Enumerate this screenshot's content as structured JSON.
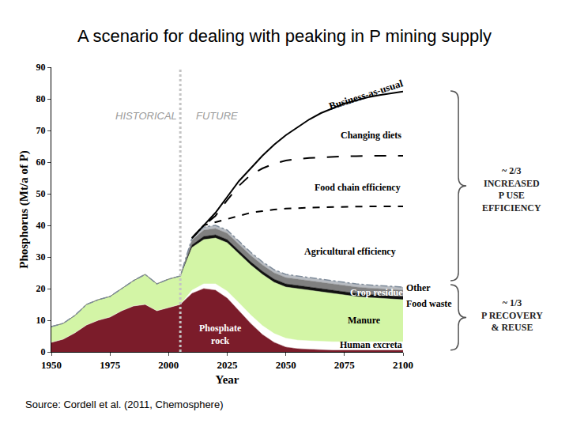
{
  "chart_data": {
    "type": "area",
    "title": "A scenario for dealing with peaking in P mining supply",
    "source": "Source: Cordell et al. (2011, Chemosphere)",
    "xlabel": "Year",
    "ylabel": "Phosphorus (Mt/a of P)",
    "stacked": true,
    "grid": false,
    "xlim": [
      1950,
      2100
    ],
    "xticks": [
      1950,
      1975,
      2000,
      2025,
      2050,
      2075,
      2100
    ],
    "ylim": [
      0,
      90
    ],
    "yticks": [
      0,
      10,
      20,
      30,
      40,
      50,
      60,
      70,
      80,
      90
    ],
    "divider_x": 2005,
    "period_labels": [
      "HISTORICAL",
      "FUTURE"
    ],
    "annotations": [
      "Changing diets",
      "Food chain efficiency",
      "Agricultural efficiency"
    ],
    "brackets": [
      {
        "lines": [
          "~ 2/3",
          "INCREASED",
          "P USE",
          "EFFICIENCY"
        ]
      },
      {
        "lines": [
          "~ 1/3",
          "P RECOVERY",
          "& REUSE"
        ]
      }
    ],
    "x": [
      1950,
      1955,
      1960,
      1965,
      1970,
      1975,
      1980,
      1985,
      1990,
      1995,
      2000,
      2005,
      2010,
      2015,
      2020,
      2025,
      2030,
      2035,
      2040,
      2045,
      2050,
      2055,
      2060,
      2065,
      2070,
      2075,
      2080,
      2085,
      2090,
      2095,
      2100
    ],
    "series": [
      {
        "name": "Phosphate rock",
        "type": "area",
        "color": "#7b1c2a",
        "values": [
          3,
          4,
          6,
          8.5,
          10,
          11,
          13,
          14.5,
          15,
          13,
          14,
          15,
          18.5,
          20,
          19.5,
          17,
          13,
          9,
          5.5,
          3,
          1.5,
          1,
          0.8,
          0.6,
          0.5,
          0.5,
          0.5,
          0.5,
          0.5,
          0.5,
          0.5
        ]
      },
      {
        "name": "Human excreta",
        "type": "area",
        "color": "#ffffff",
        "values": [
          0,
          0,
          0,
          0,
          0,
          0,
          0,
          0,
          0,
          0,
          0,
          0,
          1,
          1.5,
          2,
          2.2,
          2.5,
          2.7,
          2.8,
          2.8,
          2.8,
          2.7,
          2.7,
          2.7,
          2.7,
          2.7,
          2.7,
          2.7,
          2.7,
          2.7,
          2.7
        ]
      },
      {
        "name": "Manure",
        "type": "area",
        "color": "#d3f5a6",
        "values": [
          5,
          5,
          5.5,
          6.5,
          6.5,
          6.5,
          7,
          8,
          9.5,
          8.5,
          9,
          9,
          13.5,
          14,
          14.5,
          15.3,
          15.5,
          15.8,
          16.2,
          16.2,
          16.2,
          16.3,
          16,
          15.7,
          15.3,
          14.8,
          14.3,
          14,
          13.8,
          13.5,
          13.3
        ]
      },
      {
        "name": "Food waste",
        "type": "area",
        "color": "#111111",
        "values": [
          0,
          0,
          0,
          0,
          0,
          0,
          0,
          0,
          0,
          0,
          0,
          0,
          0.8,
          1,
          1,
          1,
          1,
          1,
          1,
          1,
          1,
          1,
          1,
          1,
          1,
          1,
          1,
          1,
          1,
          1,
          1
        ]
      },
      {
        "name": "Crop residues",
        "type": "area",
        "color": "#808080",
        "values": [
          0,
          0,
          0,
          0,
          0,
          0,
          0,
          0,
          0,
          0,
          0,
          0,
          1.5,
          2,
          2,
          2,
          2,
          2,
          2,
          2,
          2,
          2,
          2,
          2,
          2,
          2,
          2,
          2,
          2,
          2,
          2
        ]
      },
      {
        "name": "Other",
        "type": "area",
        "color": "#b8bcc2",
        "line_style": "dashdot",
        "values": [
          0,
          0,
          0,
          0,
          0,
          0,
          0,
          0,
          0,
          0,
          0,
          0,
          0.7,
          1,
          1,
          1,
          1,
          1,
          1,
          1,
          1,
          1,
          1,
          1,
          1,
          1,
          1,
          1,
          1,
          1,
          1
        ]
      },
      {
        "name": "Business-as-usual",
        "type": "line",
        "color": "#000000",
        "line_style": "solid",
        "values": [
          null,
          null,
          null,
          null,
          null,
          null,
          null,
          null,
          null,
          null,
          null,
          null,
          36,
          40,
          44,
          49,
          54,
          58,
          62,
          65.5,
          68.5,
          71,
          73.5,
          75.5,
          77,
          78.5,
          79.5,
          80.5,
          81.2,
          81.8,
          82.3
        ]
      },
      {
        "type": "line",
        "color": "#000000",
        "line_style": "longdash",
        "values": [
          null,
          null,
          null,
          null,
          null,
          null,
          null,
          null,
          null,
          null,
          null,
          null,
          36,
          40,
          43,
          48,
          52.5,
          56,
          58,
          59.5,
          60.5,
          61,
          61.3,
          61.5,
          61.7,
          61.8,
          61.9,
          62,
          62,
          62,
          62
        ]
      },
      {
        "type": "line",
        "color": "#000000",
        "line_style": "dash",
        "values": [
          null,
          null,
          null,
          null,
          null,
          null,
          null,
          null,
          null,
          null,
          null,
          null,
          36,
          40,
          41,
          42,
          43,
          44,
          44.5,
          45,
          45.3,
          45.5,
          45.6,
          45.7,
          45.8,
          45.9,
          46,
          46,
          46,
          46,
          46
        ]
      }
    ]
  }
}
